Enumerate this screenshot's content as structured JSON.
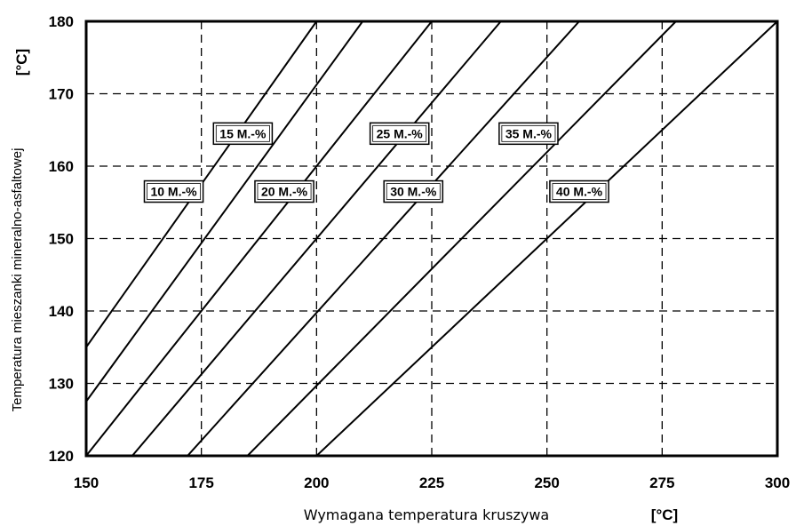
{
  "chart_data": {
    "type": "line",
    "xlabel": "Wymagana temperatura kruszywa",
    "xunit": "[°C]",
    "ylabel": "Temperatura mieszanki mineralno-asfaltowej",
    "yunit": "[°C]",
    "xlim": [
      150,
      300
    ],
    "ylim": [
      120,
      180
    ],
    "xticks": [
      "150",
      "175",
      "200",
      "225",
      "250",
      "275",
      "300"
    ],
    "yticks": [
      "120",
      "130",
      "140",
      "150",
      "160",
      "170",
      "180"
    ],
    "grid": true,
    "grid_style": "dashed",
    "series": [
      {
        "name": "10 M.-%",
        "x": [
          150,
          200
        ],
        "y": [
          135,
          180
        ],
        "label_at": [
          169,
          156.5
        ]
      },
      {
        "name": "15 M.-%",
        "x": [
          150,
          210
        ],
        "y": [
          127.5,
          180
        ],
        "label_at": [
          184,
          164.5
        ]
      },
      {
        "name": "20 M.-%",
        "x": [
          150,
          225
        ],
        "y": [
          120,
          180
        ],
        "label_at": [
          193,
          156.5
        ]
      },
      {
        "name": "25 M.-%",
        "x": [
          160,
          240
        ],
        "y": [
          120,
          180
        ],
        "label_at": [
          218,
          164.5
        ]
      },
      {
        "name": "30 M.-%",
        "x": [
          172,
          257
        ],
        "y": [
          120,
          180
        ],
        "label_at": [
          221,
          156.5
        ]
      },
      {
        "name": "35 M.-%",
        "x": [
          185,
          278
        ],
        "y": [
          120,
          180
        ],
        "label_at": [
          246,
          164.5
        ]
      },
      {
        "name": "40 M.-%",
        "x": [
          200,
          300
        ],
        "y": [
          120,
          180
        ],
        "label_at": [
          257,
          156.5
        ]
      }
    ]
  },
  "colors": {
    "line": "#000000",
    "grid": "#000000",
    "background": "#ffffff"
  }
}
